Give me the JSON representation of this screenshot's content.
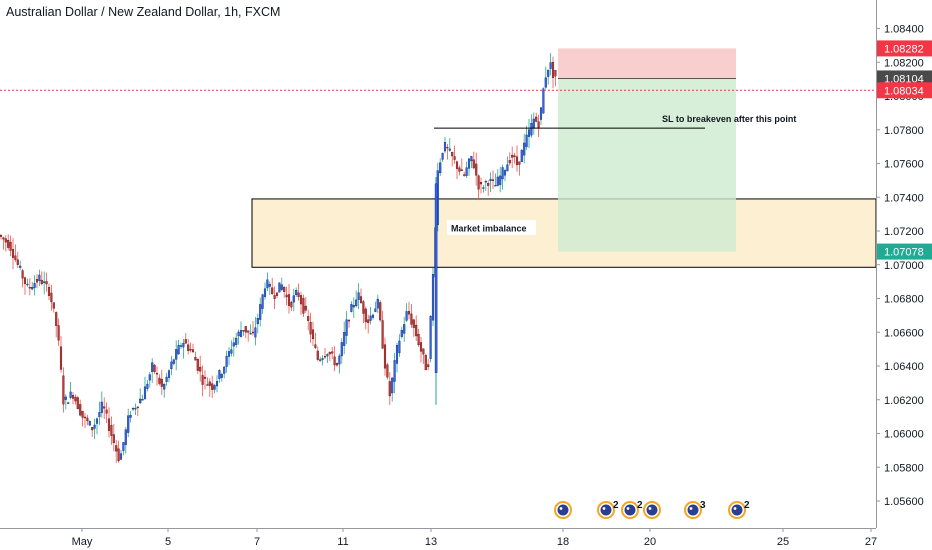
{
  "header": {
    "title": "Australian Dollar / New Zealand Dollar, 1h, FXCM"
  },
  "chart_data": {
    "type": "candlestick",
    "ylim": [
      1.0548,
      1.0848
    ],
    "y_ticks": [
      "1.08400",
      "1.08200",
      "1.08000",
      "1.07800",
      "1.07600",
      "1.07400",
      "1.07200",
      "1.07000",
      "1.06800",
      "1.06600",
      "1.06400",
      "1.06200",
      "1.06000",
      "1.05800",
      "1.05600"
    ],
    "x_ticks": [
      "May",
      "5",
      "7",
      "11",
      "13",
      "18",
      "20",
      "25",
      "27"
    ],
    "price_labels": [
      {
        "label": "1.08282",
        "value": 1.08282,
        "color": "#f23645",
        "text_color": "#ffffff"
      },
      {
        "label": "1.08104",
        "value": 1.08104,
        "color": "#4a4a4a",
        "text_color": "#ffffff"
      },
      {
        "label": "1.08034",
        "value": 1.08034,
        "color": "#f23645",
        "text_color": "#ffffff"
      },
      {
        "label": "1.07078",
        "value": 1.07078,
        "color": "#22ab94",
        "text_color": "#ffffff"
      }
    ],
    "current_price": 1.08034,
    "position": {
      "type": "short",
      "stop": 1.08282,
      "entry": 1.08104,
      "target": 1.07078,
      "loss_color": "#f7c6c6",
      "profit_color": "#cdebd0"
    },
    "zone": {
      "label": "Market imbalance",
      "top": 1.0739,
      "bottom": 1.06985,
      "fill": "#fdf0d2"
    },
    "breakeven_line": {
      "label": "SL to breakeven after this point",
      "value": 1.0781
    },
    "events": [
      {
        "count": ""
      },
      {
        "count": "2"
      },
      {
        "count": "2"
      },
      {
        "count": ""
      },
      {
        "count": "3"
      },
      {
        "count": "2"
      }
    ],
    "colors": {
      "up": "#2962ff",
      "down": "#d32f2f",
      "wick_up": "#26a69a",
      "wick_down": "#ef5350"
    }
  }
}
